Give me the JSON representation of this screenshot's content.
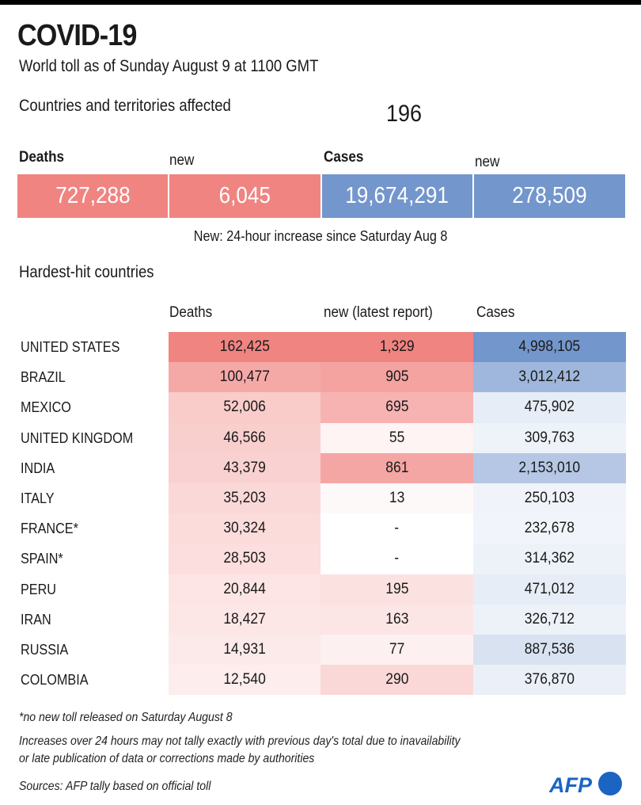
{
  "title": "COVID-19",
  "subtitle": "World toll as of Sunday August 9 at 1100 GMT",
  "affected": {
    "label": "Countries and territories affected",
    "value": "196"
  },
  "summary": {
    "deaths_label": "Deaths",
    "deaths_new_label": "new",
    "cases_label": "Cases",
    "cases_new_label": "new",
    "deaths": "727,288",
    "deaths_new": "6,045",
    "cases": "19,674,291",
    "cases_new": "278,509",
    "note": "New:  24-hour increase since Saturday Aug 8"
  },
  "colors": {
    "deaths": "#f08481",
    "cases": "#7396cc",
    "text": "#1a1a1a",
    "logo": "#1b64c4"
  },
  "section_title": "Hardest-hit countries",
  "chart_data": {
    "type": "table",
    "title": "Hardest-hit countries",
    "columns": [
      "Deaths",
      "new (latest report)",
      "Cases"
    ],
    "rows": [
      {
        "country": "UNITED STATES",
        "deaths": "162,425",
        "new": "1,329",
        "cases": "4,998,105",
        "deaths_val": 162425,
        "new_val": 1329,
        "cases_val": 4998105
      },
      {
        "country": "BRAZIL",
        "deaths": "100,477",
        "new": "905",
        "cases": "3,012,412",
        "deaths_val": 100477,
        "new_val": 905,
        "cases_val": 3012412
      },
      {
        "country": "MEXICO",
        "deaths": "52,006",
        "new": "695",
        "cases": "475,902",
        "deaths_val": 52006,
        "new_val": 695,
        "cases_val": 475902
      },
      {
        "country": "UNITED KINGDOM",
        "deaths": "46,566",
        "new": "55",
        "cases": "309,763",
        "deaths_val": 46566,
        "new_val": 55,
        "cases_val": 309763
      },
      {
        "country": "INDIA",
        "deaths": "43,379",
        "new": "861",
        "cases": "2,153,010",
        "deaths_val": 43379,
        "new_val": 861,
        "cases_val": 2153010
      },
      {
        "country": "ITALY",
        "deaths": "35,203",
        "new": "13",
        "cases": "250,103",
        "deaths_val": 35203,
        "new_val": 13,
        "cases_val": 250103
      },
      {
        "country": "FRANCE*",
        "deaths": "30,324",
        "new": "-",
        "cases": "232,678",
        "deaths_val": 30324,
        "new_val": 0,
        "cases_val": 232678
      },
      {
        "country": "SPAIN*",
        "deaths": "28,503",
        "new": "-",
        "cases": "314,362",
        "deaths_val": 28503,
        "new_val": 0,
        "cases_val": 314362
      },
      {
        "country": "PERU",
        "deaths": "20,844",
        "new": "195",
        "cases": "471,012",
        "deaths_val": 20844,
        "new_val": 195,
        "cases_val": 471012
      },
      {
        "country": "IRAN",
        "deaths": "18,427",
        "new": "163",
        "cases": "326,712",
        "deaths_val": 18427,
        "new_val": 163,
        "cases_val": 326712
      },
      {
        "country": "RUSSIA",
        "deaths": "14,931",
        "new": "77",
        "cases": "887,536",
        "deaths_val": 14931,
        "new_val": 77,
        "cases_val": 887536
      },
      {
        "country": "COLOMBIA",
        "deaths": "12,540",
        "new": "290",
        "cases": "376,870",
        "deaths_val": 12540,
        "new_val": 290,
        "cases_val": 376870
      }
    ]
  },
  "footnotes": {
    "asterisk": "*no  new toll released on Saturday August 8",
    "disclaimer_1": "Increases over 24 hours may not tally exactly with previous day's total due to inavailability",
    "disclaimer_2": "or late publication of data or corrections made by authorities",
    "sources": "Sources: AFP tally based on official toll"
  },
  "logo": {
    "text": "AFP",
    "icon": "afp-logo-icon"
  }
}
